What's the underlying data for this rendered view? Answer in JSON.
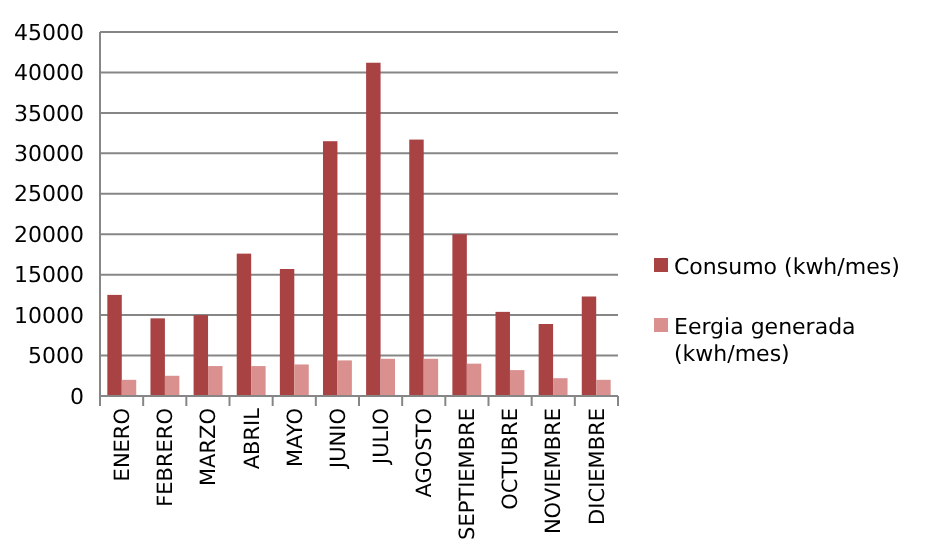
{
  "chart_data": {
    "type": "bar",
    "categories": [
      "ENERO",
      "FEBRERO",
      "MARZO",
      "ABRIL",
      "MAYO",
      "JUNIO",
      "JULIO",
      "AGOSTO",
      "SEPTIEMBRE",
      "OCTUBRE",
      "NOVIEMBRE",
      "DICIEMBRE"
    ],
    "series": [
      {
        "name": "Consumo (kwh/mes)",
        "color": "#a84243",
        "values": [
          12500,
          9600,
          10000,
          17600,
          15700,
          31500,
          41200,
          31700,
          20000,
          10400,
          8900,
          12300
        ]
      },
      {
        "name": "Eergia generada (kwh/mes)",
        "color": "#d9908f",
        "values": [
          2000,
          2500,
          3700,
          3700,
          3900,
          4400,
          4600,
          4600,
          4000,
          3200,
          2200,
          2000
        ]
      }
    ],
    "ylim": [
      0,
      45000
    ],
    "yticks": [
      0,
      5000,
      10000,
      15000,
      20000,
      25000,
      30000,
      35000,
      40000,
      45000
    ],
    "grid": "y",
    "legend": "right"
  }
}
